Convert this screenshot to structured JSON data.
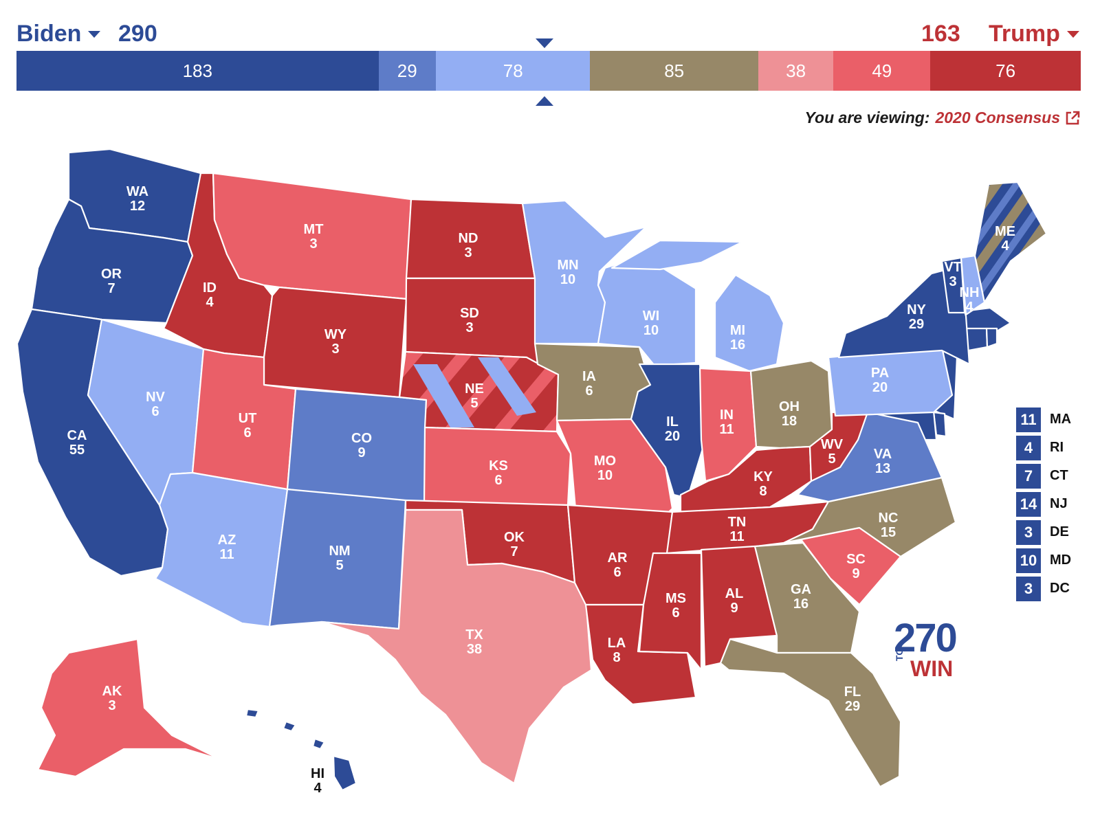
{
  "header": {
    "biden": {
      "name": "Biden",
      "total": "290"
    },
    "trump": {
      "name": "Trump",
      "total": "163"
    },
    "viewing_prefix": "You are viewing:",
    "viewing_link": "2020 Consensus",
    "link_icon": "external-link-icon",
    "name_caret_icon": "caret-down-icon",
    "threshold_marker_icon": "triangle-marker-icon"
  },
  "colors": {
    "safe_d": "#2d4b96",
    "likely_d": "#5e7cc8",
    "lean_d": "#93aef3",
    "tossup": "#978868",
    "lean_r": "#ee9196",
    "likely_r": "#ea5f68",
    "safe_r": "#bd3236"
  },
  "bar_segments": [
    {
      "value": "183",
      "rating": "safe_d"
    },
    {
      "value": "29",
      "rating": "likely_d"
    },
    {
      "value": "78",
      "rating": "lean_d"
    },
    {
      "value": "85",
      "rating": "tossup"
    },
    {
      "value": "38",
      "rating": "lean_r"
    },
    {
      "value": "49",
      "rating": "likely_r"
    },
    {
      "value": "76",
      "rating": "safe_r"
    }
  ],
  "states": {
    "WA": {
      "abbr": "WA",
      "ev": "12",
      "rating": "safe_d"
    },
    "OR": {
      "abbr": "OR",
      "ev": "7",
      "rating": "safe_d"
    },
    "CA": {
      "abbr": "CA",
      "ev": "55",
      "rating": "safe_d"
    },
    "NV": {
      "abbr": "NV",
      "ev": "6",
      "rating": "lean_d"
    },
    "ID": {
      "abbr": "ID",
      "ev": "4",
      "rating": "safe_r"
    },
    "MT": {
      "abbr": "MT",
      "ev": "3",
      "rating": "likely_r"
    },
    "WY": {
      "abbr": "WY",
      "ev": "3",
      "rating": "safe_r"
    },
    "UT": {
      "abbr": "UT",
      "ev": "6",
      "rating": "likely_r"
    },
    "AZ": {
      "abbr": "AZ",
      "ev": "11",
      "rating": "lean_d"
    },
    "CO": {
      "abbr": "CO",
      "ev": "9",
      "rating": "likely_d"
    },
    "NM": {
      "abbr": "NM",
      "ev": "5",
      "rating": "likely_d"
    },
    "ND": {
      "abbr": "ND",
      "ev": "3",
      "rating": "safe_r"
    },
    "SD": {
      "abbr": "SD",
      "ev": "3",
      "rating": "safe_r"
    },
    "NE": {
      "abbr": "NE",
      "ev": "5",
      "rating": "safe_r"
    },
    "KS": {
      "abbr": "KS",
      "ev": "6",
      "rating": "likely_r"
    },
    "OK": {
      "abbr": "OK",
      "ev": "7",
      "rating": "safe_r"
    },
    "TX": {
      "abbr": "TX",
      "ev": "38",
      "rating": "lean_r"
    },
    "MN": {
      "abbr": "MN",
      "ev": "10",
      "rating": "lean_d"
    },
    "IA": {
      "abbr": "IA",
      "ev": "6",
      "rating": "tossup"
    },
    "MO": {
      "abbr": "MO",
      "ev": "10",
      "rating": "likely_r"
    },
    "AR": {
      "abbr": "AR",
      "ev": "6",
      "rating": "safe_r"
    },
    "LA": {
      "abbr": "LA",
      "ev": "8",
      "rating": "safe_r"
    },
    "WI": {
      "abbr": "WI",
      "ev": "10",
      "rating": "lean_d"
    },
    "IL": {
      "abbr": "IL",
      "ev": "20",
      "rating": "safe_d"
    },
    "MI": {
      "abbr": "MI",
      "ev": "16",
      "rating": "lean_d"
    },
    "IN": {
      "abbr": "IN",
      "ev": "11",
      "rating": "likely_r"
    },
    "OH": {
      "abbr": "OH",
      "ev": "18",
      "rating": "tossup"
    },
    "KY": {
      "abbr": "KY",
      "ev": "8",
      "rating": "safe_r"
    },
    "TN": {
      "abbr": "TN",
      "ev": "11",
      "rating": "safe_r"
    },
    "MS": {
      "abbr": "MS",
      "ev": "6",
      "rating": "safe_r"
    },
    "AL": {
      "abbr": "AL",
      "ev": "9",
      "rating": "safe_r"
    },
    "GA": {
      "abbr": "GA",
      "ev": "16",
      "rating": "tossup"
    },
    "FL": {
      "abbr": "FL",
      "ev": "29",
      "rating": "tossup"
    },
    "SC": {
      "abbr": "SC",
      "ev": "9",
      "rating": "likely_r"
    },
    "NC": {
      "abbr": "NC",
      "ev": "15",
      "rating": "tossup"
    },
    "VA": {
      "abbr": "VA",
      "ev": "13",
      "rating": "likely_d"
    },
    "WV": {
      "abbr": "WV",
      "ev": "5",
      "rating": "safe_r"
    },
    "PA": {
      "abbr": "PA",
      "ev": "20",
      "rating": "lean_d"
    },
    "NY": {
      "abbr": "NY",
      "ev": "29",
      "rating": "safe_d"
    },
    "VT": {
      "abbr": "VT",
      "ev": "3",
      "rating": "safe_d"
    },
    "NH": {
      "abbr": "NH",
      "ev": "4",
      "rating": "lean_d"
    },
    "ME": {
      "abbr": "ME",
      "ev": "4",
      "rating": "safe_d"
    },
    "AK": {
      "abbr": "AK",
      "ev": "3",
      "rating": "likely_r"
    },
    "HI": {
      "abbr": "HI",
      "ev": "4",
      "rating": "safe_d"
    }
  },
  "small_states": [
    {
      "ev": "11",
      "abbr": "MA"
    },
    {
      "ev": "4",
      "abbr": "RI"
    },
    {
      "ev": "7",
      "abbr": "CT"
    },
    {
      "ev": "14",
      "abbr": "NJ"
    },
    {
      "ev": "3",
      "abbr": "DE"
    },
    {
      "ev": "10",
      "abbr": "MD"
    },
    {
      "ev": "3",
      "abbr": "DC"
    }
  ],
  "logo": {
    "number": "270",
    "small": "TO",
    "word": "WIN"
  }
}
